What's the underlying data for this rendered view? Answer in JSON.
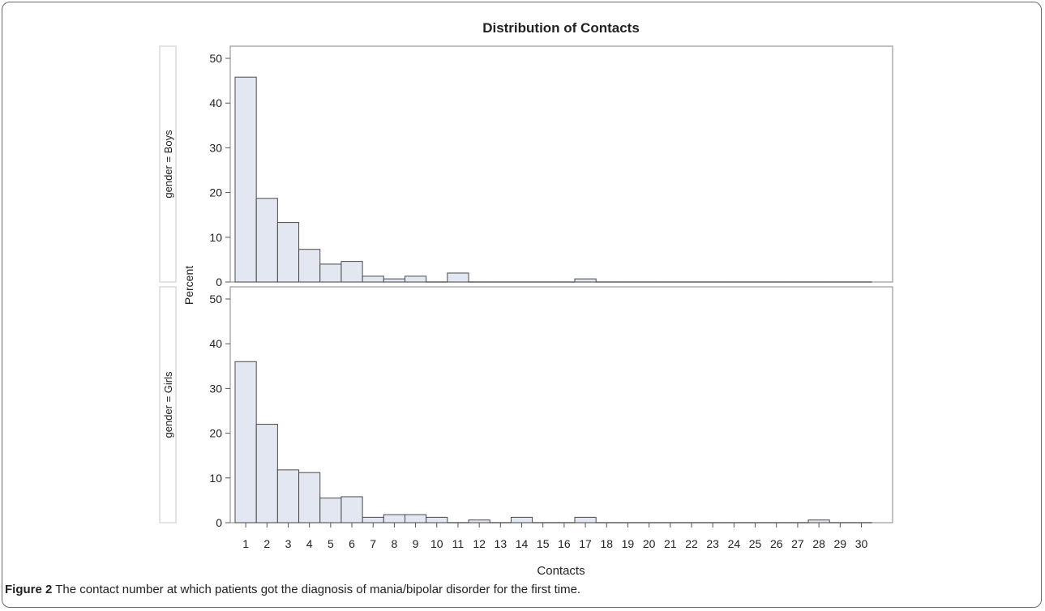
{
  "chart_data": {
    "type": "bar",
    "title": "Distribution of Contacts",
    "xlabel": "Contacts",
    "ylabel": "Percent",
    "categories": [
      1,
      2,
      3,
      4,
      5,
      6,
      7,
      8,
      9,
      10,
      11,
      12,
      13,
      14,
      15,
      16,
      17,
      18,
      19,
      20,
      21,
      22,
      23,
      24,
      25,
      26,
      27,
      28,
      29,
      30
    ],
    "ylim": [
      0,
      50
    ],
    "yticks": [
      0,
      10,
      20,
      30,
      40,
      50
    ],
    "bar_fill": "#e3e7f1",
    "bar_stroke": "#4a4a4a",
    "panels": [
      {
        "label": "gender = Boys",
        "values": [
          45.8,
          18.7,
          13.3,
          7.3,
          4.0,
          4.6,
          1.3,
          0.7,
          1.3,
          0.0,
          2.0,
          0,
          0,
          0,
          0,
          0,
          0.7,
          0,
          0,
          0,
          0,
          0,
          0,
          0,
          0,
          0,
          0,
          0,
          0,
          0
        ]
      },
      {
        "label": "gender = Girls",
        "values": [
          36.0,
          22.0,
          11.8,
          11.2,
          5.5,
          5.8,
          1.2,
          1.8,
          1.8,
          1.2,
          0,
          0.6,
          0,
          1.2,
          0,
          0,
          1.2,
          0,
          0,
          0,
          0,
          0,
          0,
          0,
          0,
          0,
          0,
          0.6,
          0,
          0
        ]
      }
    ]
  },
  "caption": {
    "label": "Figure 2",
    "text": " The contact number at which patients got the diagnosis of mania/bipolar disorder for the first time."
  }
}
